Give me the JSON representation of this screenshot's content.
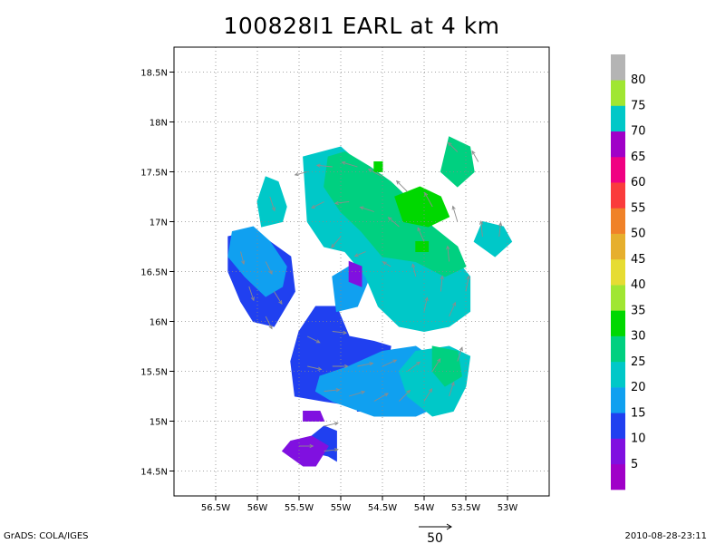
{
  "title": "100828I1  EARL at 4 km",
  "footer": {
    "left": "GrADS: COLA/IGES",
    "right": "2010-08-28-23:11"
  },
  "reference_vector": {
    "label": "50",
    "value": 50
  },
  "map": {
    "lon_range": [
      -57.0,
      -52.5
    ],
    "lat_range": [
      14.25,
      18.75
    ],
    "lon_ticks": [
      {
        "value": -56.5,
        "label": "56.5W"
      },
      {
        "value": -56.0,
        "label": "56W"
      },
      {
        "value": -55.5,
        "label": "55.5W"
      },
      {
        "value": -55.0,
        "label": "55W"
      },
      {
        "value": -54.5,
        "label": "54.5W"
      },
      {
        "value": -54.0,
        "label": "54W"
      },
      {
        "value": -53.5,
        "label": "53.5W"
      },
      {
        "value": -53.0,
        "label": "53W"
      }
    ],
    "lat_ticks": [
      {
        "value": 14.5,
        "label": "14.5N"
      },
      {
        "value": 15.0,
        "label": "15N"
      },
      {
        "value": 15.5,
        "label": "15.5N"
      },
      {
        "value": 16.0,
        "label": "16N"
      },
      {
        "value": 16.5,
        "label": "16.5N"
      },
      {
        "value": 17.0,
        "label": "17N"
      },
      {
        "value": 17.5,
        "label": "17.5N"
      },
      {
        "value": 18.0,
        "label": "18N"
      },
      {
        "value": 18.5,
        "label": "18.5N"
      }
    ],
    "grid": "dotted",
    "regions": [
      {
        "band": "10-15",
        "color": "#2040f0",
        "points": [
          [
            -55.5,
            15.9
          ],
          [
            -55.3,
            16.15
          ],
          [
            -55.05,
            16.15
          ],
          [
            -54.9,
            15.85
          ],
          [
            -54.6,
            15.8
          ],
          [
            -54.4,
            15.75
          ],
          [
            -54.5,
            15.3
          ],
          [
            -54.8,
            15.15
          ],
          [
            -55.2,
            15.2
          ],
          [
            -55.55,
            15.25
          ],
          [
            -55.6,
            15.6
          ]
        ]
      },
      {
        "band": "10-15",
        "color": "#2040f0",
        "points": [
          [
            -56.35,
            16.85
          ],
          [
            -56.1,
            16.9
          ],
          [
            -55.85,
            16.8
          ],
          [
            -55.6,
            16.65
          ],
          [
            -55.55,
            16.3
          ],
          [
            -55.8,
            15.95
          ],
          [
            -56.05,
            16.0
          ],
          [
            -56.2,
            16.2
          ],
          [
            -56.35,
            16.5
          ]
        ]
      },
      {
        "band": "10-15",
        "color": "#2040f0",
        "points": [
          [
            -55.15,
            14.65
          ],
          [
            -55.05,
            14.6
          ],
          [
            -55.05,
            14.9
          ],
          [
            -55.2,
            14.95
          ],
          [
            -55.35,
            14.85
          ],
          [
            -55.4,
            14.7
          ]
        ]
      },
      {
        "band": "10-15",
        "color": "#2040f0",
        "points": [
          [
            -54.8,
            15.1
          ],
          [
            -54.5,
            15.1
          ],
          [
            -54.4,
            15.3
          ],
          [
            -54.7,
            15.35
          ]
        ]
      },
      {
        "band": "15-20",
        "color": "#10a0f0",
        "points": [
          [
            -56.3,
            16.9
          ],
          [
            -56.05,
            16.95
          ],
          [
            -55.85,
            16.8
          ],
          [
            -55.65,
            16.55
          ],
          [
            -55.7,
            16.35
          ],
          [
            -55.9,
            16.25
          ],
          [
            -56.15,
            16.45
          ],
          [
            -56.35,
            16.65
          ]
        ]
      },
      {
        "band": "15-20",
        "color": "#10a0f0",
        "points": [
          [
            -55.25,
            15.45
          ],
          [
            -54.9,
            15.55
          ],
          [
            -54.5,
            15.7
          ],
          [
            -54.1,
            15.75
          ],
          [
            -53.75,
            15.55
          ],
          [
            -53.7,
            15.2
          ],
          [
            -54.1,
            15.05
          ],
          [
            -54.6,
            15.05
          ],
          [
            -55.1,
            15.2
          ],
          [
            -55.3,
            15.3
          ]
        ]
      },
      {
        "band": "15-20",
        "color": "#10a0f0",
        "points": [
          [
            -55.1,
            16.45
          ],
          [
            -54.8,
            16.6
          ],
          [
            -54.65,
            16.45
          ],
          [
            -54.8,
            16.15
          ],
          [
            -55.05,
            16.1
          ]
        ]
      },
      {
        "band": "20-25",
        "color": "#00c8c8",
        "points": [
          [
            -55.45,
            17.65
          ],
          [
            -55.0,
            17.75
          ],
          [
            -54.8,
            17.6
          ],
          [
            -54.75,
            17.2
          ],
          [
            -54.45,
            16.9
          ],
          [
            -54.1,
            16.85
          ],
          [
            -53.7,
            16.7
          ],
          [
            -53.45,
            16.45
          ],
          [
            -53.45,
            16.1
          ],
          [
            -53.7,
            15.95
          ],
          [
            -54.0,
            15.9
          ],
          [
            -54.3,
            15.95
          ],
          [
            -54.55,
            16.15
          ],
          [
            -54.7,
            16.45
          ],
          [
            -54.95,
            16.7
          ],
          [
            -55.2,
            16.75
          ],
          [
            -55.4,
            17.0
          ]
        ]
      },
      {
        "band": "20-25",
        "color": "#00c8c8",
        "points": [
          [
            -53.3,
            17.0
          ],
          [
            -53.05,
            16.95
          ],
          [
            -52.95,
            16.8
          ],
          [
            -53.15,
            16.65
          ],
          [
            -53.4,
            16.8
          ]
        ]
      },
      {
        "band": "20-25",
        "color": "#00c8c8",
        "points": [
          [
            -55.9,
            17.45
          ],
          [
            -55.75,
            17.4
          ],
          [
            -55.65,
            17.15
          ],
          [
            -55.7,
            17.0
          ],
          [
            -55.95,
            16.95
          ],
          [
            -56.0,
            17.2
          ]
        ]
      },
      {
        "band": "20-25",
        "color": "#00c8c8",
        "points": [
          [
            -54.1,
            15.7
          ],
          [
            -53.7,
            15.75
          ],
          [
            -53.45,
            15.65
          ],
          [
            -53.5,
            15.35
          ],
          [
            -53.65,
            15.1
          ],
          [
            -53.9,
            15.05
          ],
          [
            -54.2,
            15.25
          ],
          [
            -54.3,
            15.5
          ]
        ]
      },
      {
        "band": "25-30",
        "color": "#00d080",
        "points": [
          [
            -55.15,
            17.65
          ],
          [
            -54.95,
            17.7
          ],
          [
            -54.65,
            17.55
          ],
          [
            -54.4,
            17.4
          ],
          [
            -54.15,
            17.2
          ],
          [
            -53.9,
            16.95
          ],
          [
            -53.6,
            16.75
          ],
          [
            -53.5,
            16.55
          ],
          [
            -53.75,
            16.45
          ],
          [
            -54.1,
            16.6
          ],
          [
            -54.5,
            16.65
          ],
          [
            -54.75,
            16.9
          ],
          [
            -55.0,
            17.1
          ],
          [
            -55.2,
            17.35
          ]
        ]
      },
      {
        "band": "25-30",
        "color": "#00d080",
        "points": [
          [
            -53.7,
            17.85
          ],
          [
            -53.45,
            17.75
          ],
          [
            -53.4,
            17.5
          ],
          [
            -53.6,
            17.35
          ],
          [
            -53.8,
            17.5
          ]
        ]
      },
      {
        "band": "25-30",
        "color": "#00d080",
        "points": [
          [
            -53.9,
            15.75
          ],
          [
            -53.6,
            15.7
          ],
          [
            -53.55,
            15.45
          ],
          [
            -53.75,
            15.35
          ],
          [
            -53.9,
            15.5
          ]
        ]
      },
      {
        "band": "30-35",
        "color": "#00d800",
        "points": [
          [
            -54.35,
            17.25
          ],
          [
            -54.05,
            17.35
          ],
          [
            -53.8,
            17.25
          ],
          [
            -53.7,
            17.05
          ],
          [
            -53.95,
            16.95
          ],
          [
            -54.25,
            17.0
          ]
        ]
      },
      {
        "band": "30-35",
        "color": "#00d800",
        "points": [
          [
            -54.6,
            17.6
          ],
          [
            -54.5,
            17.6
          ],
          [
            -54.5,
            17.5
          ],
          [
            -54.6,
            17.5
          ]
        ]
      },
      {
        "band": "30-35",
        "color": "#00d800",
        "points": [
          [
            -54.1,
            16.8
          ],
          [
            -53.95,
            16.8
          ],
          [
            -53.95,
            16.7
          ],
          [
            -54.1,
            16.7
          ]
        ]
      },
      {
        "band": "5-10",
        "color": "#8010e0",
        "points": [
          [
            -55.6,
            14.8
          ],
          [
            -55.35,
            14.85
          ],
          [
            -55.15,
            14.75
          ],
          [
            -55.3,
            14.55
          ],
          [
            -55.45,
            14.55
          ],
          [
            -55.7,
            14.7
          ]
        ]
      },
      {
        "band": "5-10",
        "color": "#8010e0",
        "points": [
          [
            -55.45,
            15.1
          ],
          [
            -55.25,
            15.1
          ],
          [
            -55.2,
            15.0
          ],
          [
            -55.45,
            15.0
          ]
        ]
      },
      {
        "band": "5-10",
        "color": "#8010e0",
        "points": [
          [
            -54.9,
            16.6
          ],
          [
            -54.75,
            16.55
          ],
          [
            -54.75,
            16.35
          ],
          [
            -54.9,
            16.4
          ]
        ]
      }
    ],
    "wind_vectors": [
      {
        "lon": -55.4,
        "lat": 17.5,
        "u": -8,
        "v": -2
      },
      {
        "lon": -55.1,
        "lat": 17.55,
        "u": -10,
        "v": 1
      },
      {
        "lon": -54.8,
        "lat": 17.55,
        "u": -10,
        "v": 3
      },
      {
        "lon": -54.5,
        "lat": 17.45,
        "u": -9,
        "v": 5
      },
      {
        "lon": -54.2,
        "lat": 17.3,
        "u": -7,
        "v": 7
      },
      {
        "lon": -53.9,
        "lat": 17.15,
        "u": -5,
        "v": 9
      },
      {
        "lon": -53.6,
        "lat": 17.0,
        "u": -3,
        "v": 10
      },
      {
        "lon": -53.3,
        "lat": 16.85,
        "u": -1,
        "v": 10
      },
      {
        "lon": -55.2,
        "lat": 17.2,
        "u": -8,
        "v": -4
      },
      {
        "lon": -54.9,
        "lat": 17.2,
        "u": -9,
        "v": -1
      },
      {
        "lon": -54.6,
        "lat": 17.1,
        "u": -9,
        "v": 3
      },
      {
        "lon": -54.3,
        "lat": 16.95,
        "u": -7,
        "v": 6
      },
      {
        "lon": -54.0,
        "lat": 16.8,
        "u": -4,
        "v": 9
      },
      {
        "lon": -53.7,
        "lat": 16.6,
        "u": -1,
        "v": 10
      },
      {
        "lon": -53.5,
        "lat": 16.3,
        "u": 2,
        "v": 10
      },
      {
        "lon": -55.0,
        "lat": 16.85,
        "u": -6,
        "v": -7
      },
      {
        "lon": -54.7,
        "lat": 16.7,
        "u": -7,
        "v": -3
      },
      {
        "lon": -54.4,
        "lat": 16.55,
        "u": -5,
        "v": 3
      },
      {
        "lon": -54.1,
        "lat": 16.45,
        "u": -2,
        "v": 8
      },
      {
        "lon": -53.8,
        "lat": 16.3,
        "u": 1,
        "v": 10
      },
      {
        "lon": -53.7,
        "lat": 16.05,
        "u": 4,
        "v": 9
      },
      {
        "lon": -54.0,
        "lat": 16.1,
        "u": 2,
        "v": 9
      },
      {
        "lon": -56.2,
        "lat": 16.7,
        "u": 2,
        "v": -8
      },
      {
        "lon": -55.9,
        "lat": 16.6,
        "u": 4,
        "v": -8
      },
      {
        "lon": -56.1,
        "lat": 16.35,
        "u": 3,
        "v": -9
      },
      {
        "lon": -55.8,
        "lat": 16.3,
        "u": 5,
        "v": -8
      },
      {
        "lon": -55.9,
        "lat": 16.05,
        "u": 4,
        "v": -8
      },
      {
        "lon": -55.85,
        "lat": 17.25,
        "u": 3,
        "v": -9
      },
      {
        "lon": -55.4,
        "lat": 15.85,
        "u": 8,
        "v": -4
      },
      {
        "lon": -55.1,
        "lat": 15.9,
        "u": 9,
        "v": -1
      },
      {
        "lon": -55.4,
        "lat": 15.55,
        "u": 9,
        "v": -2
      },
      {
        "lon": -55.1,
        "lat": 15.55,
        "u": 10,
        "v": 0
      },
      {
        "lon": -54.8,
        "lat": 15.55,
        "u": 10,
        "v": 2
      },
      {
        "lon": -54.5,
        "lat": 15.55,
        "u": 9,
        "v": 4
      },
      {
        "lon": -54.2,
        "lat": 15.5,
        "u": 8,
        "v": 6
      },
      {
        "lon": -53.9,
        "lat": 15.5,
        "u": 5,
        "v": 8
      },
      {
        "lon": -53.6,
        "lat": 15.6,
        "u": 3,
        "v": 9
      },
      {
        "lon": -55.2,
        "lat": 15.3,
        "u": 10,
        "v": 1
      },
      {
        "lon": -54.9,
        "lat": 15.25,
        "u": 10,
        "v": 3
      },
      {
        "lon": -54.6,
        "lat": 15.2,
        "u": 9,
        "v": 5
      },
      {
        "lon": -54.3,
        "lat": 15.2,
        "u": 7,
        "v": 7
      },
      {
        "lon": -54.0,
        "lat": 15.2,
        "u": 5,
        "v": 8
      },
      {
        "lon": -53.7,
        "lat": 15.25,
        "u": 3,
        "v": 9
      },
      {
        "lon": -55.5,
        "lat": 14.75,
        "u": 9,
        "v": 0
      },
      {
        "lon": -55.2,
        "lat": 14.7,
        "u": 9,
        "v": 1
      },
      {
        "lon": -55.2,
        "lat": 14.95,
        "u": 9,
        "v": 2
      },
      {
        "lon": -53.1,
        "lat": 16.85,
        "u": 1,
        "v": 9
      },
      {
        "lon": -53.6,
        "lat": 17.7,
        "u": -6,
        "v": 6
      },
      {
        "lon": -53.35,
        "lat": 17.6,
        "u": -4,
        "v": 7
      }
    ]
  },
  "colorbar": {
    "labels": [
      "5",
      "10",
      "15",
      "20",
      "25",
      "30",
      "35",
      "40",
      "45",
      "50",
      "55",
      "60",
      "65",
      "70",
      "75",
      "80"
    ],
    "colors": [
      "#a000c8",
      "#8010e0",
      "#2040f0",
      "#10a0f0",
      "#00c8c8",
      "#00d080",
      "#00d800",
      "#a0e632",
      "#e6dc32",
      "#e6af2d",
      "#f08228",
      "#fa3c3c",
      "#f00082",
      "#a000c8",
      "#00c8c8",
      "#a0e632",
      "#b4b4b4"
    ]
  }
}
